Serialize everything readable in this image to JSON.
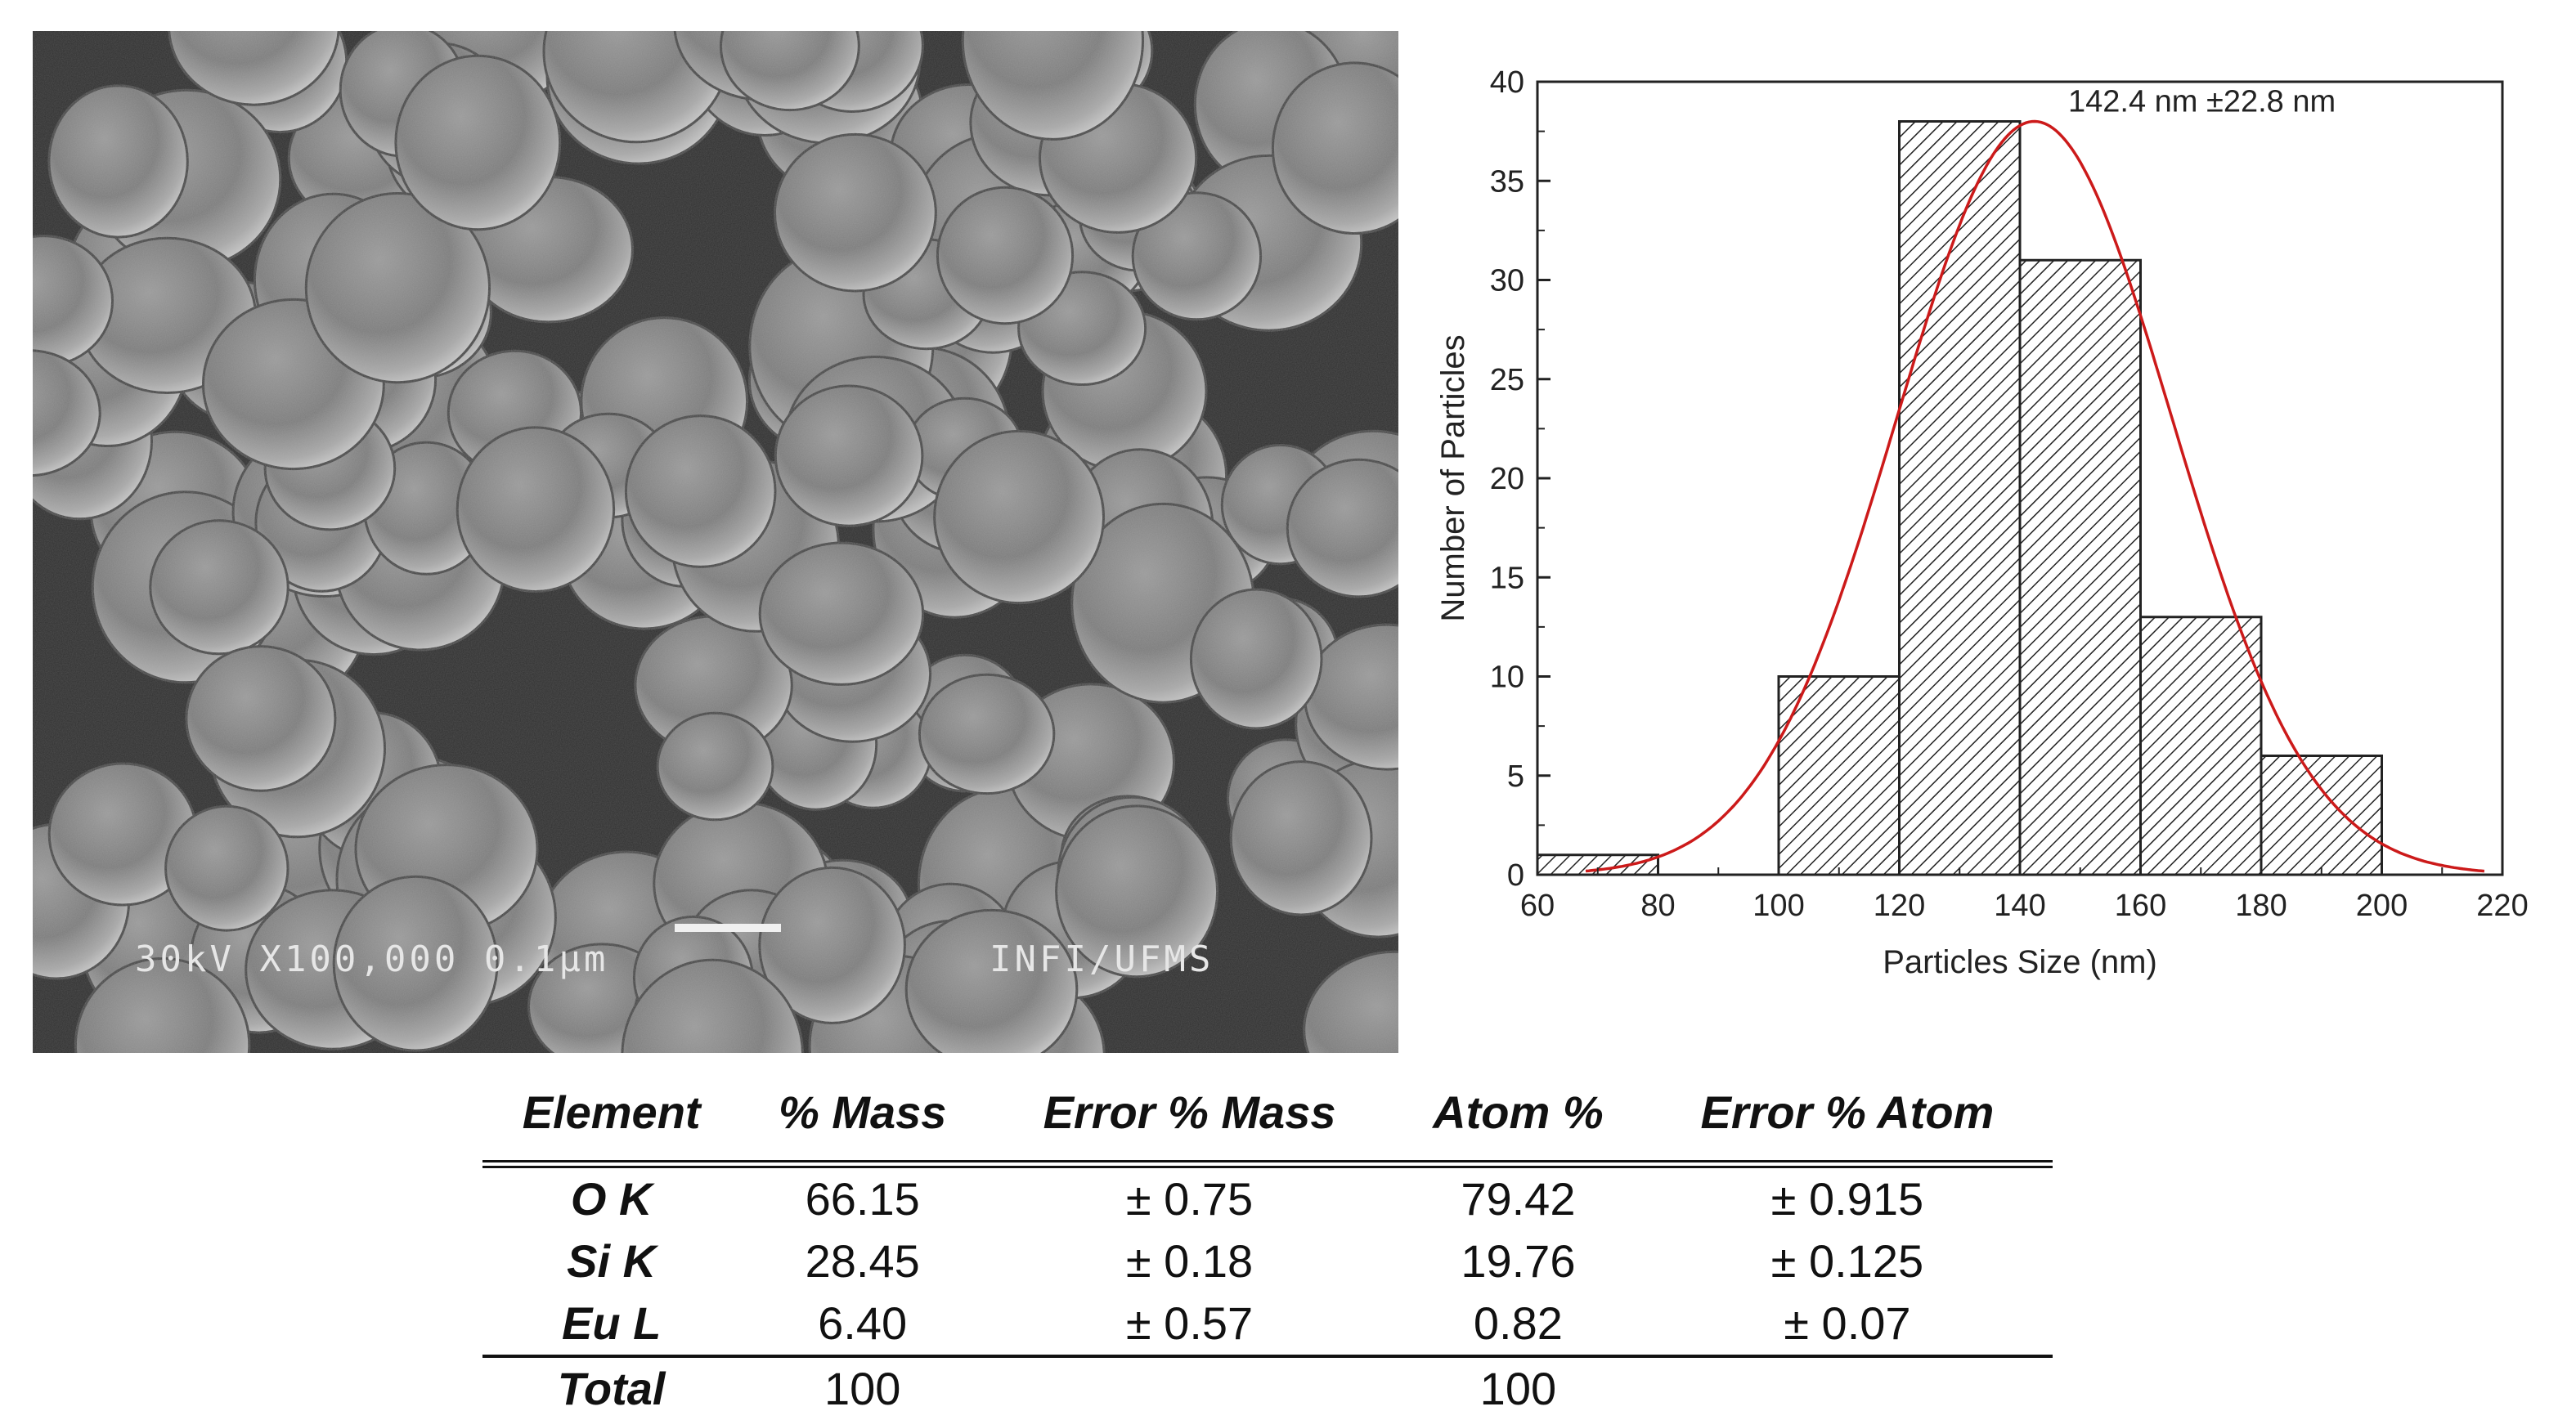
{
  "sem_image": {
    "info_label": "30kV X100,000 0.1μm",
    "institution_label": "INFI/UFMS"
  },
  "chart_data": {
    "type": "bar",
    "bin_edges": [
      60,
      80,
      100,
      120,
      140,
      160,
      180,
      200
    ],
    "values": [
      1,
      0,
      10,
      38,
      31,
      13,
      6
    ],
    "fit": {
      "type": "gaussian",
      "mean": 142.4,
      "sd": 22.8,
      "peak": 38,
      "x_range": [
        68,
        217
      ]
    },
    "annotation": "142.4 nm ±22.8 nm",
    "xlabel": "Particles Size (nm)",
    "ylabel": "Number of Particles",
    "xlim": [
      60,
      220
    ],
    "ylim": [
      0,
      40
    ],
    "x_ticks": [
      60,
      80,
      100,
      120,
      140,
      160,
      180,
      200,
      220
    ],
    "y_ticks": [
      0,
      5,
      10,
      15,
      20,
      25,
      30,
      35,
      40
    ],
    "bar_fill": "hatched",
    "fit_color": "#cc1a1a",
    "grid": false
  },
  "table": {
    "headers": [
      "Element",
      "% Mass",
      "Error % Mass",
      "Atom %",
      "Error % Atom"
    ],
    "rows": [
      [
        "O K",
        "66.15",
        "± 0.75",
        "79.42",
        "± 0.915"
      ],
      [
        "Si K",
        "28.45",
        "± 0.18",
        "19.76",
        "± 0.125"
      ],
      [
        "Eu L",
        "6.40",
        "± 0.57",
        "0.82",
        "± 0.07"
      ]
    ],
    "total": [
      "Total",
      "100",
      "",
      "100",
      ""
    ]
  }
}
